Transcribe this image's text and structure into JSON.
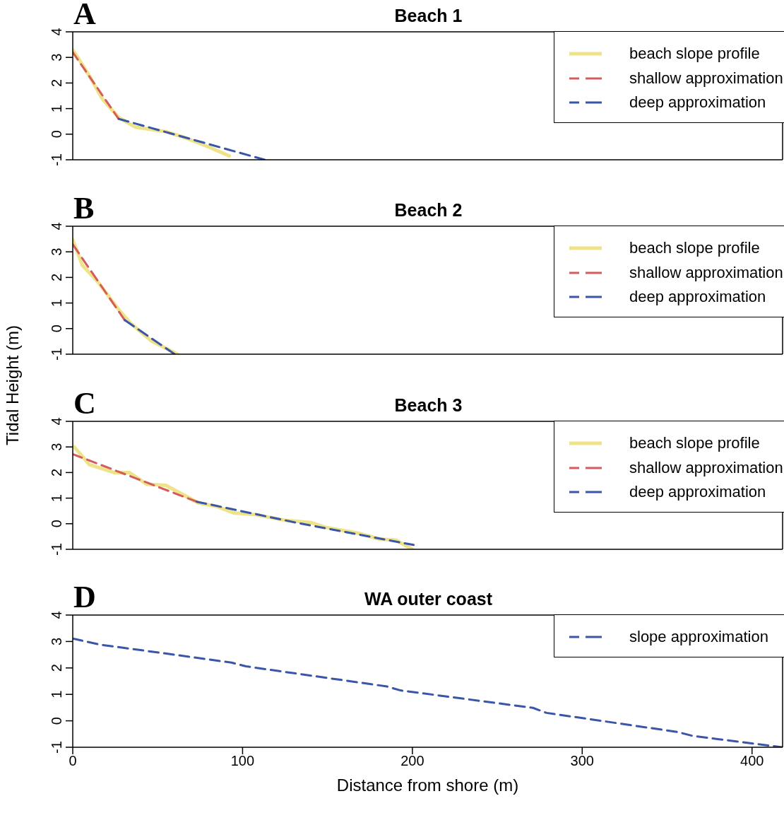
{
  "chart_data": [
    {
      "type": "line",
      "title": "Beach 1",
      "annotations": [
        "A"
      ],
      "xlim": [
        0,
        418
      ],
      "xticks": [
        0,
        100,
        200,
        300,
        400
      ],
      "ylim": [
        -1,
        4
      ],
      "yticks": [
        -1,
        0,
        1,
        2,
        3,
        4
      ],
      "tick_labels": "y",
      "legend": "top right",
      "grid": false,
      "series": [
        {
          "name": "beach slope profile",
          "color": "#efe38a",
          "line_style": "solid",
          "x": [
            0,
            3.6,
            10.5,
            17.4,
            27.1,
            36.8,
            54.8,
            65.8,
            79.7,
            92.1
          ],
          "values": [
            3.29,
            2.93,
            2.2,
            1.38,
            0.65,
            0.28,
            0.1,
            -0.13,
            -0.49,
            -0.85
          ]
        },
        {
          "name": "shallow approximation",
          "color": "#d55c5c",
          "line_style": "dashed",
          "x": [
            0,
            27
          ],
          "values": [
            3.2,
            0.6
          ]
        },
        {
          "name": "deep approximation",
          "color": "#3a56a8",
          "line_style": "dashed",
          "x": [
            27,
            113
          ],
          "values": [
            0.6,
            -1
          ]
        }
      ]
    },
    {
      "type": "line",
      "title": "Beach 2",
      "annotations": [
        "B"
      ],
      "ylabel": "Tidal Height (m)",
      "xlim": [
        0,
        418
      ],
      "xticks": [
        0,
        100,
        200,
        300,
        400
      ],
      "ylim": [
        -1,
        4
      ],
      "yticks": [
        -1,
        0,
        1,
        2,
        3,
        4
      ],
      "tick_labels": "y",
      "legend": "top right",
      "grid": false,
      "series": [
        {
          "name": "beach slope profile",
          "color": "#efe38a",
          "line_style": "solid",
          "x": [
            0,
            5.7,
            14.7,
            27.1,
            34,
            46.5,
            61.7
          ],
          "values": [
            3.47,
            2.47,
            1.83,
            0.74,
            0.21,
            -0.49,
            -1
          ]
        },
        {
          "name": "shallow approximation",
          "color": "#d55c5c",
          "line_style": "dashed",
          "x": [
            0,
            30.6
          ],
          "values": [
            3.29,
            0.33
          ]
        },
        {
          "name": "deep approximation",
          "color": "#3a56a8",
          "line_style": "dashed",
          "x": [
            30.6,
            60
          ],
          "values": [
            0.33,
            -1
          ]
        }
      ]
    },
    {
      "type": "line",
      "title": "Beach 3",
      "annotations": [
        "C"
      ],
      "xlim": [
        0,
        418
      ],
      "xticks": [
        0,
        100,
        200,
        300,
        400
      ],
      "ylim": [
        -1,
        4
      ],
      "yticks": [
        -1,
        0,
        1,
        2,
        3,
        4
      ],
      "tick_labels": "y",
      "legend": "top right",
      "grid": false,
      "series": [
        {
          "name": "beach slope profile",
          "color": "#efe38a",
          "line_style": "solid",
          "x": [
            0.8,
            9.8,
            24.3,
            33.3,
            43.7,
            54.8,
            74.1,
            85.2,
            94.9,
            107.3,
            125.3,
            140.5,
            148.8,
            168.2,
            180.6,
            190.3,
            200
          ],
          "values": [
            3.0,
            2.31,
            2.0,
            2.0,
            1.54,
            1.5,
            0.81,
            0.67,
            0.42,
            0.36,
            0.13,
            0.04,
            -0.14,
            -0.37,
            -0.6,
            -0.64,
            -1
          ]
        },
        {
          "name": "shallow approximation",
          "color": "#d55c5c",
          "line_style": "dashed",
          "x": [
            0,
            73
          ],
          "values": [
            2.72,
            0.86
          ]
        },
        {
          "name": "deep approximation",
          "color": "#3a56a8",
          "line_style": "dashed",
          "x": [
            73,
            131,
            200.7
          ],
          "values": [
            0.86,
            0.05,
            -0.83
          ]
        }
      ]
    },
    {
      "type": "line",
      "title": "WA outer coast",
      "annotations": [
        "D"
      ],
      "xlabel": "Distance from shore (m)",
      "xlim": [
        0,
        418
      ],
      "xticks": [
        0,
        100,
        200,
        300,
        400
      ],
      "ylim": [
        -1,
        4
      ],
      "yticks": [
        -1,
        0,
        1,
        2,
        3,
        4
      ],
      "legend": "top right",
      "grid": false,
      "series": [
        {
          "name": "slope approximation",
          "color": "#3a56a8",
          "line_style": "dashed",
          "x": [
            0,
            16,
            52,
            93.5,
            102,
            185,
            193,
            271,
            279,
            356,
            365,
            418
          ],
          "values": [
            3.11,
            2.88,
            2.57,
            2.2,
            2.06,
            1.3,
            1.15,
            0.49,
            0.3,
            -0.42,
            -0.57,
            -1
          ]
        }
      ]
    }
  ]
}
